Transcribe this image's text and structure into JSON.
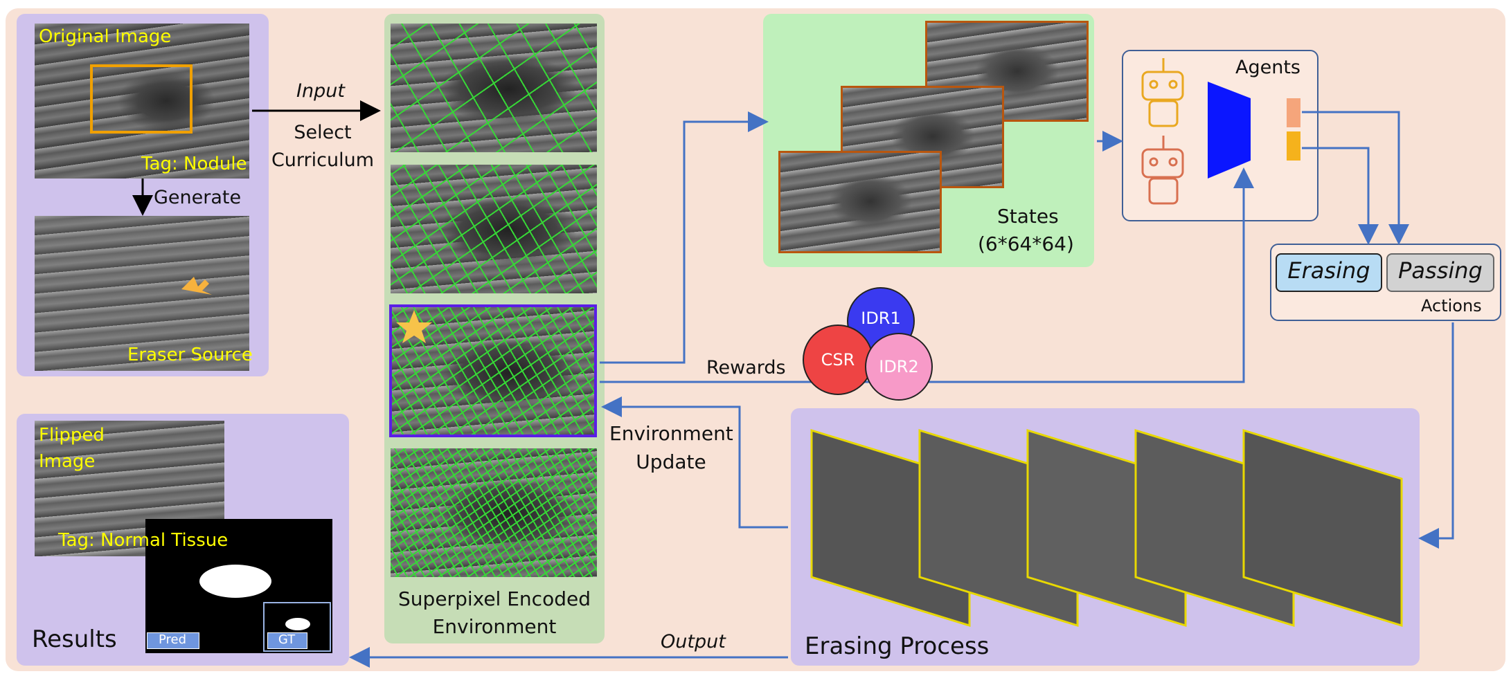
{
  "original": {
    "title": "Original Image",
    "tag": "Tag: Nodule",
    "generate": "Generate",
    "eraser_source": "Eraser Source"
  },
  "input_arrow": {
    "input": "Input",
    "select_curriculum": "Select\nCurriculum"
  },
  "environment": {
    "label": "Superpixel Encoded\nEnvironment",
    "update": "Environment\nUpdate"
  },
  "states": {
    "label": "States",
    "dims": "(6*64*64)"
  },
  "agents": {
    "label": "Agents"
  },
  "actions": {
    "erasing": "Erasing",
    "passing": "Passing",
    "label": "Actions"
  },
  "rewards": {
    "label": "Rewards",
    "idr1": "IDR1",
    "csr": "CSR",
    "idr2": "IDR2"
  },
  "erasing_process": {
    "label": "Erasing Process",
    "output": "Output"
  },
  "results": {
    "flipped": "Flipped\nImage",
    "tag": "Tag: Normal Tissue",
    "label": "Results",
    "pred": "Pred",
    "gt": "GT"
  },
  "colors": {
    "background_panel": "#f8e2d6",
    "purple_panel": "#cfc2ec",
    "green_panel": "#c6ddb6",
    "light_green_panel": "#bff0bb",
    "arrow_blue": "#4472c4",
    "funnel_blue": "#0b16ff",
    "highlight_orange": "#f0a000",
    "label_yellow": "#ffff00"
  }
}
